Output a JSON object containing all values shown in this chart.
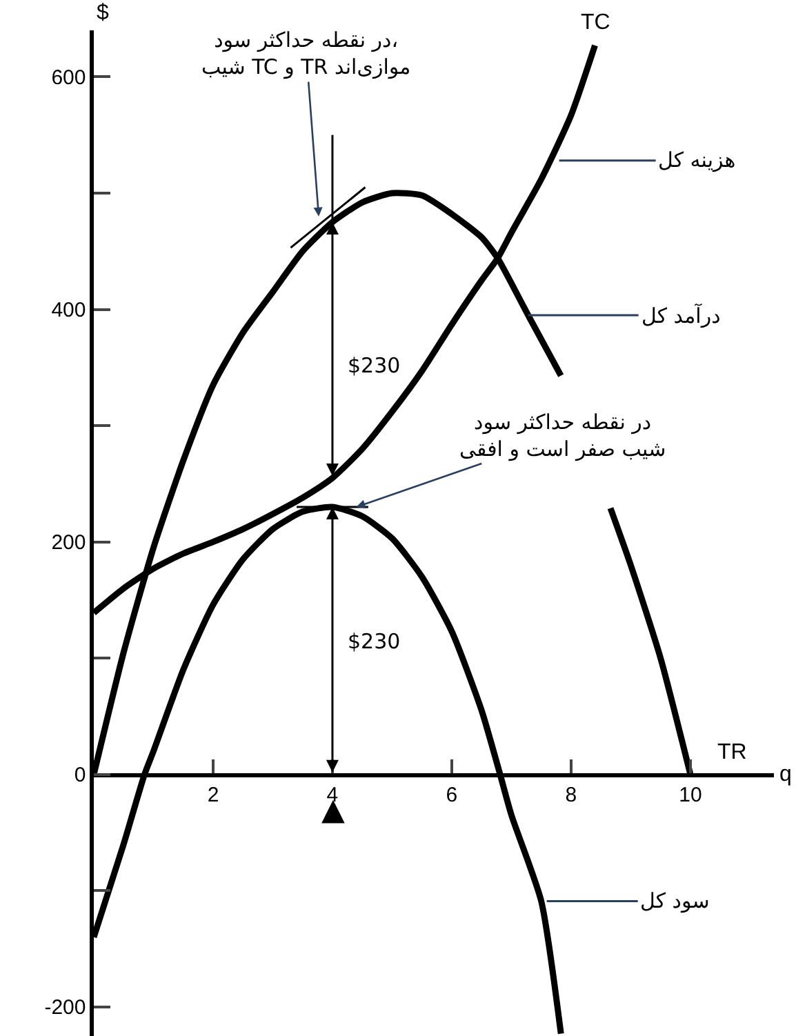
{
  "chart_data": {
    "type": "line",
    "xlabel": "q",
    "ylabel": "$",
    "xlim": [
      0,
      11.4
    ],
    "ylim": [
      -225,
      640
    ],
    "xticks": [
      2,
      4,
      6,
      8,
      10
    ],
    "yticks": [
      -200,
      {
        "value": -100,
        "label": null
      },
      0,
      {
        "value": 100,
        "label": null
      },
      200,
      {
        "value": 300,
        "label": null
      },
      400,
      {
        "value": 500,
        "label": null
      },
      600
    ],
    "legend": false,
    "series": [
      {
        "name": "TR",
        "color": "#000000",
        "x": [
          0,
          0.5,
          1,
          1.5,
          2,
          2.5,
          3,
          3.5,
          4,
          4.5,
          5,
          5.5,
          6,
          6.5,
          6.77,
          7.28,
          7.83,
          8.2,
          8.66,
          9,
          9.5,
          10
        ],
        "values": [
          0,
          105,
          195,
          270,
          335,
          380,
          415,
          450,
          475,
          492,
          500,
          498,
          482,
          462,
          444,
          395,
          343,
          null,
          229,
          180,
          100,
          0
        ]
      },
      {
        "name": "TC",
        "color": "#000000",
        "x": [
          0,
          0.5,
          1,
          1.5,
          2,
          2.5,
          3,
          3.5,
          4,
          4.5,
          5,
          5.5,
          6,
          6.5,
          6.77,
          7,
          7.5,
          8,
          8.4
        ],
        "values": [
          139,
          160,
          177,
          190,
          200,
          211,
          224,
          238,
          255,
          280,
          312,
          347,
          387,
          425,
          444,
          466,
          512,
          567,
          627
        ]
      },
      {
        "name": "سود کل",
        "color": "#000000",
        "x": [
          0,
          0.5,
          0.85,
          1,
          1.5,
          2,
          2.5,
          3,
          3.5,
          4,
          4.5,
          5,
          5.5,
          6,
          6.5,
          6.81,
          7,
          7.5,
          7.83
        ],
        "values": [
          -140,
          -60,
          0,
          20,
          90,
          146,
          185,
          211,
          226,
          230,
          222,
          203,
          170,
          123,
          55,
          0,
          -35,
          -109,
          -223
        ]
      },
      {
        "color": "#000000",
        "x": [
          3.3,
          4.55
        ],
        "values": [
          453,
          505
        ]
      },
      {
        "color": "#000000",
        "x": [
          3.4,
          4.6
        ],
        "values": [
          230,
          230
        ]
      },
      {
        "color": "#000000",
        "x": [
          4,
          4
        ],
        "values": [
          550,
          475
        ]
      }
    ],
    "annotations": [
      {
        "text": "در نقطه حداکثر سود،\nشیب TC و TR موازی‌اند",
        "x": 3.77,
        "y": 480
      },
      {
        "text": "در نقطه حداکثر سود\nشیب صفر است و افقی",
        "x": 4.4,
        "y": 230
      },
      "$230",
      "$230",
      {
        "text": "هزینه کل",
        "x": 7.8,
        "y": 528
      },
      {
        "text": "درآمد کل",
        "x": 7.28,
        "y": 395
      },
      "▲"
    ]
  }
}
